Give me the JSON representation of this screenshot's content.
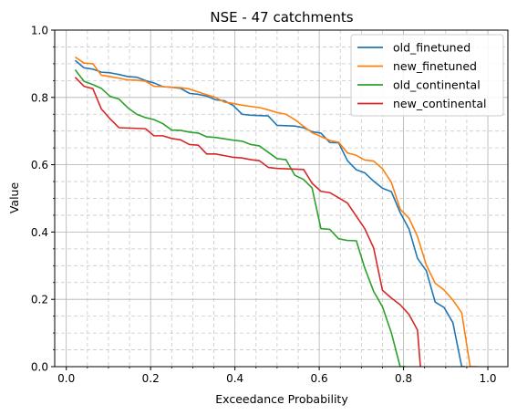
{
  "chart_data": {
    "type": "line",
    "title": "NSE - 47 catchments",
    "xlabel": "Exceedance Probability",
    "ylabel": "Value",
    "xlim": [
      -0.0275,
      1.0475
    ],
    "ylim": [
      0.0,
      1.0
    ],
    "xticks": [
      0.0,
      0.2,
      0.4,
      0.6,
      0.8,
      1.0
    ],
    "xtick_labels": [
      "0.0",
      "0.2",
      "0.4",
      "0.6",
      "0.8",
      "1.0"
    ],
    "yticks": [
      0.0,
      0.2,
      0.4,
      0.6,
      0.8,
      1.0
    ],
    "ytick_labels": [
      "0.0",
      "0.2",
      "0.4",
      "0.6",
      "0.8",
      "1.0"
    ],
    "grid": "major solid, minor dashed",
    "legend_position": "top-right",
    "series": [
      {
        "name": "old_finetuned",
        "color": "#1f77b4",
        "x": [
          0.021,
          0.042,
          0.063,
          0.083,
          0.104,
          0.125,
          0.146,
          0.167,
          0.188,
          0.208,
          0.229,
          0.25,
          0.271,
          0.292,
          0.313,
          0.333,
          0.354,
          0.375,
          0.396,
          0.417,
          0.438,
          0.458,
          0.479,
          0.5,
          0.521,
          0.542,
          0.563,
          0.583,
          0.604,
          0.625,
          0.646,
          0.667,
          0.688,
          0.708,
          0.729,
          0.75,
          0.771,
          0.792,
          0.813,
          0.833,
          0.854,
          0.875,
          0.896,
          0.917,
          0.938,
          0.946
        ],
        "y": [
          0.91,
          0.888,
          0.884,
          0.875,
          0.873,
          0.868,
          0.862,
          0.86,
          0.85,
          0.843,
          0.832,
          0.83,
          0.827,
          0.812,
          0.809,
          0.804,
          0.793,
          0.79,
          0.776,
          0.75,
          0.747,
          0.746,
          0.745,
          0.717,
          0.716,
          0.715,
          0.71,
          0.698,
          0.694,
          0.666,
          0.665,
          0.612,
          0.585,
          0.576,
          0.551,
          0.53,
          0.52,
          0.458,
          0.409,
          0.322,
          0.285,
          0.192,
          0.176,
          0.131,
          0.0,
          0.0
        ]
      },
      {
        "name": "new_finetuned",
        "color": "#ff7f0e",
        "x": [
          0.021,
          0.042,
          0.063,
          0.083,
          0.104,
          0.125,
          0.146,
          0.167,
          0.188,
          0.208,
          0.229,
          0.25,
          0.271,
          0.292,
          0.313,
          0.333,
          0.354,
          0.375,
          0.396,
          0.417,
          0.438,
          0.458,
          0.479,
          0.5,
          0.521,
          0.542,
          0.563,
          0.583,
          0.604,
          0.625,
          0.646,
          0.667,
          0.688,
          0.708,
          0.729,
          0.75,
          0.771,
          0.792,
          0.813,
          0.833,
          0.854,
          0.875,
          0.896,
          0.917,
          0.938,
          0.958,
          0.975
        ],
        "y": [
          0.92,
          0.902,
          0.9,
          0.866,
          0.862,
          0.857,
          0.852,
          0.851,
          0.848,
          0.833,
          0.832,
          0.83,
          0.829,
          0.825,
          0.816,
          0.808,
          0.8,
          0.786,
          0.782,
          0.777,
          0.773,
          0.77,
          0.763,
          0.755,
          0.75,
          0.734,
          0.714,
          0.695,
          0.684,
          0.672,
          0.667,
          0.635,
          0.628,
          0.614,
          0.611,
          0.588,
          0.548,
          0.468,
          0.441,
          0.387,
          0.302,
          0.248,
          0.228,
          0.198,
          0.16,
          0.0,
          0.0
        ]
      },
      {
        "name": "old_continental",
        "color": "#2ca02c",
        "x": [
          0.021,
          0.042,
          0.063,
          0.083,
          0.104,
          0.125,
          0.146,
          0.167,
          0.188,
          0.208,
          0.229,
          0.25,
          0.271,
          0.292,
          0.313,
          0.333,
          0.354,
          0.375,
          0.396,
          0.417,
          0.438,
          0.458,
          0.479,
          0.5,
          0.521,
          0.542,
          0.563,
          0.583,
          0.604,
          0.625,
          0.646,
          0.667,
          0.688,
          0.708,
          0.729,
          0.75,
          0.771,
          0.792,
          0.805
        ],
        "y": [
          0.882,
          0.848,
          0.838,
          0.827,
          0.803,
          0.795,
          0.769,
          0.75,
          0.74,
          0.734,
          0.722,
          0.703,
          0.702,
          0.697,
          0.694,
          0.683,
          0.681,
          0.677,
          0.673,
          0.67,
          0.66,
          0.656,
          0.637,
          0.618,
          0.615,
          0.569,
          0.556,
          0.531,
          0.41,
          0.408,
          0.38,
          0.375,
          0.374,
          0.293,
          0.224,
          0.178,
          0.101,
          0.0,
          0.0
        ]
      },
      {
        "name": "new_continental",
        "color": "#d62728",
        "x": [
          0.021,
          0.042,
          0.063,
          0.083,
          0.104,
          0.125,
          0.146,
          0.167,
          0.188,
          0.208,
          0.229,
          0.25,
          0.271,
          0.292,
          0.313,
          0.333,
          0.354,
          0.375,
          0.396,
          0.417,
          0.438,
          0.458,
          0.479,
          0.5,
          0.521,
          0.542,
          0.563,
          0.583,
          0.604,
          0.625,
          0.646,
          0.667,
          0.688,
          0.708,
          0.729,
          0.75,
          0.771,
          0.792,
          0.813,
          0.833,
          0.84
        ],
        "y": [
          0.86,
          0.833,
          0.826,
          0.766,
          0.736,
          0.71,
          0.709,
          0.708,
          0.707,
          0.686,
          0.686,
          0.678,
          0.674,
          0.66,
          0.658,
          0.632,
          0.632,
          0.627,
          0.622,
          0.62,
          0.615,
          0.612,
          0.592,
          0.589,
          0.588,
          0.587,
          0.586,
          0.545,
          0.521,
          0.517,
          0.502,
          0.486,
          0.447,
          0.41,
          0.353,
          0.227,
          0.204,
          0.184,
          0.155,
          0.109,
          0.0
        ]
      }
    ]
  }
}
